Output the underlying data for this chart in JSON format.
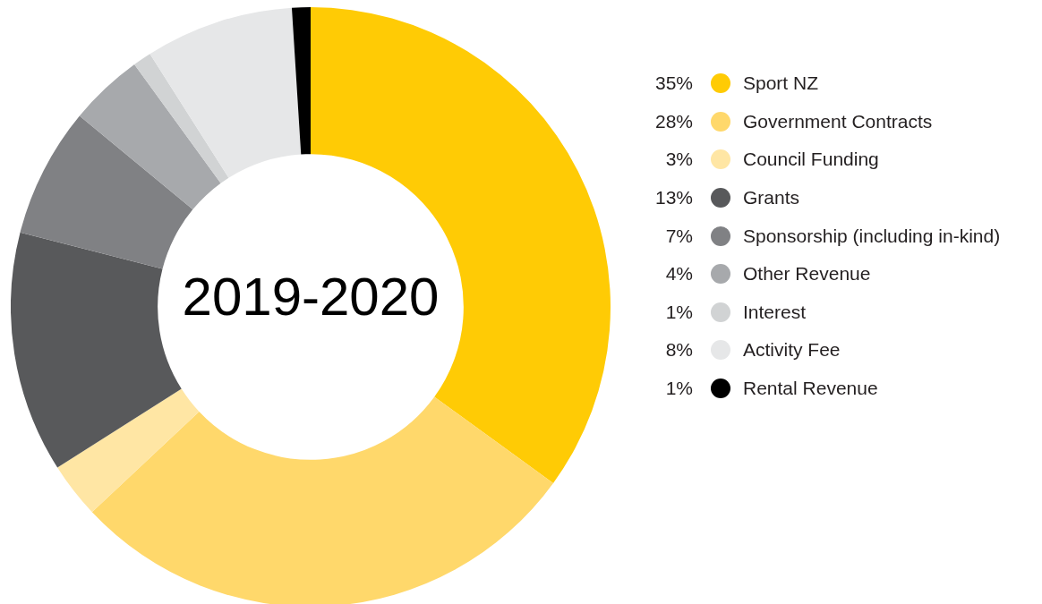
{
  "chart_data": {
    "type": "donut",
    "title": "2019-2020",
    "categories": [
      "Sport NZ",
      "Government Contracts",
      "Council Funding",
      "Grants",
      "Sponsorship (including in-kind)",
      "Other Revenue",
      "Interest",
      "Activity Fee",
      "Rental Revenue"
    ],
    "values": [
      35,
      28,
      3,
      13,
      7,
      4,
      1,
      8,
      1
    ],
    "colors": [
      "#ffcb05",
      "#ffd86b",
      "#ffe6a4",
      "#58595b",
      "#808184",
      "#a7a9ac",
      "#d1d3d4",
      "#e6e7e8",
      "#000000"
    ],
    "value_labels": [
      "35%",
      "28%",
      "3%",
      "13%",
      "7%",
      "4%",
      "1%",
      "8%",
      "1%"
    ],
    "legend": "right"
  }
}
